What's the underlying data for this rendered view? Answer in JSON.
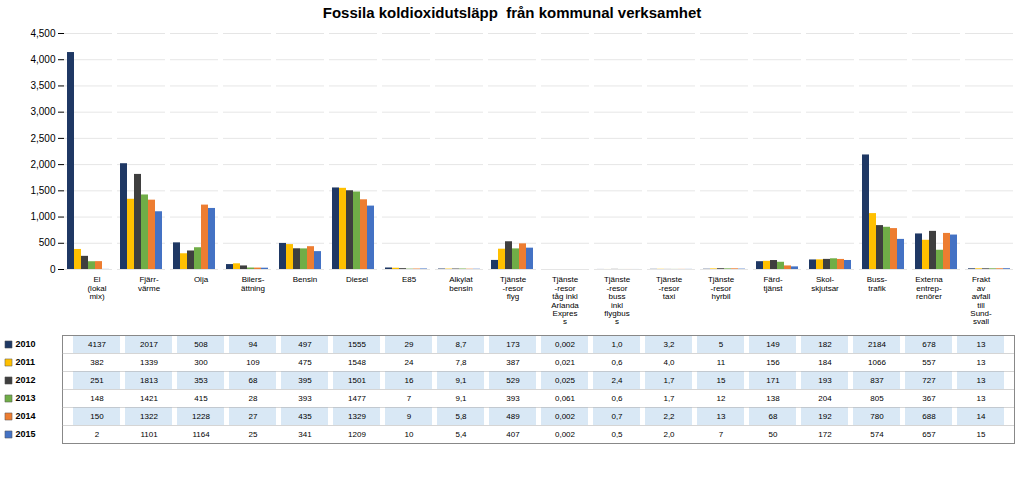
{
  "chart_data": {
    "type": "bar",
    "title": "Fossila koldioxidutsläpp  från kommunal verksamhet",
    "categories": [
      "El\n(lokal\nmix)",
      "Fjärr-\nvärme",
      "Olja",
      "Bilers-\nättning",
      "Bensin",
      "Diesel",
      "E85",
      "Alkylat\nbensin",
      "Tjänste\n-resor\nflyg",
      "Tjänste\n-resor\ntåg inkl\nArlanda\nExpres\ns",
      "Tjänste\n-resor\nbuss\ninkl\nflygbus\ns",
      "Tjänste\n-resor\ntaxi",
      "Tjänste\n-resor\nhyrbil",
      "Färd-\ntjänst",
      "Skol-\nskjutsar",
      "Buss-\ntrafik",
      "Externa\nentrep-\nrenörer",
      "Frakt\nav\navfall\ntill\nSund-\nsvall"
    ],
    "series": [
      {
        "name": "2010",
        "color": "#1F3864",
        "values": [
          4137,
          2017,
          508,
          94,
          497,
          1555,
          29,
          8.7,
          173,
          0.002,
          1.0,
          3.2,
          5,
          149,
          182,
          2184,
          678,
          13
        ],
        "value_labels": [
          "4137",
          "2017",
          "508",
          "94",
          "497",
          "1555",
          "29",
          "8,7",
          "173",
          "0,002",
          "1,0",
          "3,2",
          "5",
          "149",
          "182",
          "2184",
          "678",
          "13"
        ]
      },
      {
        "name": "2011",
        "color": "#FFC000",
        "values": [
          382,
          1339,
          300,
          109,
          475,
          1548,
          24,
          7.8,
          387,
          0.021,
          0.6,
          4.0,
          11,
          156,
          184,
          1066,
          557,
          13
        ],
        "value_labels": [
          "382",
          "1339",
          "300",
          "109",
          "475",
          "1548",
          "24",
          "7,8",
          "387",
          "0,021",
          "0,6",
          "4,0",
          "11",
          "156",
          "184",
          "1066",
          "557",
          "13"
        ]
      },
      {
        "name": "2012",
        "color": "#3F3F3F",
        "values": [
          251,
          1813,
          353,
          68,
          395,
          1501,
          16,
          9.1,
          529,
          0.025,
          2.4,
          1.7,
          15,
          171,
          193,
          837,
          727,
          13
        ],
        "value_labels": [
          "251",
          "1813",
          "353",
          "68",
          "395",
          "1501",
          "16",
          "9,1",
          "529",
          "0,025",
          "2,4",
          "1,7",
          "15",
          "171",
          "193",
          "837",
          "727",
          "13"
        ]
      },
      {
        "name": "2013",
        "color": "#70AD47",
        "values": [
          148,
          1421,
          415,
          28,
          393,
          1477,
          7,
          9.1,
          393,
          0.061,
          0.6,
          1.7,
          12,
          138,
          204,
          805,
          367,
          13
        ],
        "value_labels": [
          "148",
          "1421",
          "415",
          "28",
          "393",
          "1477",
          "7",
          "9,1",
          "393",
          "0,061",
          "0,6",
          "1,7",
          "12",
          "138",
          "204",
          "805",
          "367",
          "13"
        ]
      },
      {
        "name": "2014",
        "color": "#ED7D31",
        "values": [
          150,
          1322,
          1228,
          27,
          435,
          1329,
          9,
          5.8,
          489,
          0.002,
          0.7,
          2.2,
          13,
          68,
          192,
          780,
          688,
          14
        ],
        "value_labels": [
          "150",
          "1322",
          "1228",
          "27",
          "435",
          "1329",
          "9",
          "5,8",
          "489",
          "0,002",
          "0,7",
          "2,2",
          "13",
          "68",
          "192",
          "780",
          "688",
          "14"
        ]
      },
      {
        "name": "2015",
        "color": "#4472C4",
        "values": [
          2,
          1101,
          1164,
          25,
          341,
          1209,
          10,
          5.4,
          407,
          0.002,
          0.5,
          2.0,
          7,
          50,
          172,
          574,
          657,
          15
        ],
        "value_labels": [
          "2",
          "1101",
          "1164",
          "25",
          "341",
          "1209",
          "10",
          "5,4",
          "407",
          "0,002",
          "0,5",
          "2,0",
          "7",
          "50",
          "172",
          "574",
          "657",
          "15"
        ]
      }
    ],
    "ylim": [
      0,
      4500
    ],
    "yticks": [
      0,
      500,
      1000,
      1500,
      2000,
      2500,
      3000,
      3500,
      4000,
      4500
    ],
    "grid": true
  }
}
